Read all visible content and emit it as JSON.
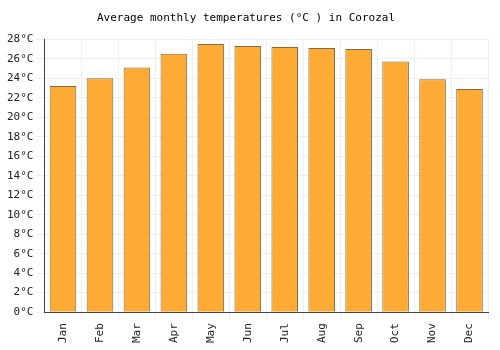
{
  "chart_data": {
    "type": "bar",
    "title": "Average monthly temperatures (°C ) in Corozal",
    "categories": [
      "Jan",
      "Feb",
      "Mar",
      "Apr",
      "May",
      "Jun",
      "Jul",
      "Aug",
      "Sep",
      "Oct",
      "Nov",
      "Dec"
    ],
    "values": [
      23.2,
      24.0,
      25.1,
      26.5,
      27.5,
      27.3,
      27.2,
      27.1,
      27.0,
      25.7,
      23.9,
      22.9
    ],
    "color": "#fdab35",
    "ylim": [
      0,
      28
    ],
    "yticks": [
      {
        "value": 0,
        "label": "0°C"
      },
      {
        "value": 2,
        "label": "2°C"
      },
      {
        "value": 4,
        "label": "4°C"
      },
      {
        "value": 6,
        "label": "6°C"
      },
      {
        "value": 8,
        "label": "8°C"
      },
      {
        "value": 10,
        "label": "10°C"
      },
      {
        "value": 12,
        "label": "12°C"
      },
      {
        "value": 14,
        "label": "14°C"
      },
      {
        "value": 16,
        "label": "16°C"
      },
      {
        "value": 18,
        "label": "18°C"
      },
      {
        "value": 20,
        "label": "20°C"
      },
      {
        "value": 22,
        "label": "22°C"
      },
      {
        "value": 24,
        "label": "24°C"
      },
      {
        "value": 26,
        "label": "26°C"
      },
      {
        "value": 28,
        "label": "28°C"
      }
    ],
    "grid": true
  }
}
